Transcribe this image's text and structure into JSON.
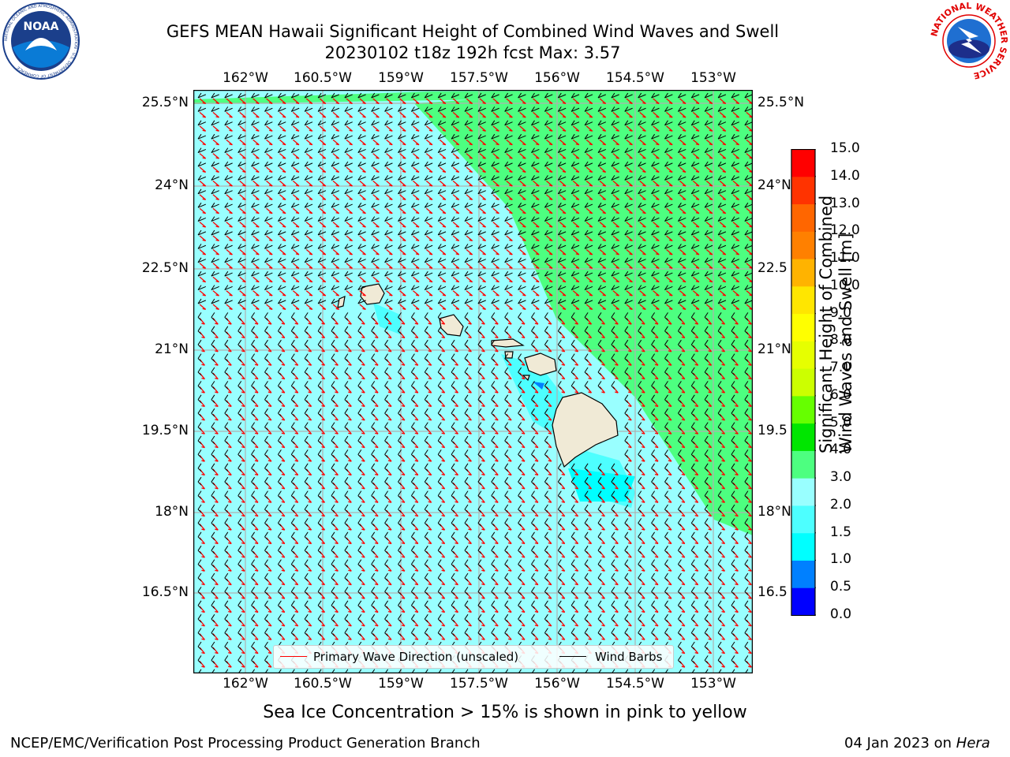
{
  "header": {
    "title_line1": "GEFS MEAN Hawaii Significant Height of Combined Wind Waves and Swell",
    "title_line2": "20230102 t18z 192h fcst   Max: 3.57"
  },
  "logos": {
    "noaa_text": "NOAA",
    "noaa_ring_text": "NATIONAL OCEANIC AND ATMOSPHERIC ADMINISTRATION · U.S. DEPARTMENT OF COMMERCE",
    "nws_ring_text": "NATIONAL WEATHER SERVICE"
  },
  "map": {
    "lon_labels": [
      "162°W",
      "160.5°W",
      "159°W",
      "157.5°W",
      "156°W",
      "154.5°W",
      "153°W"
    ],
    "lat_labels": [
      "25.5°N",
      "24°N",
      "22.5°N",
      "21°N",
      "19.5°N",
      "18°N",
      "16.5°N"
    ],
    "right_lat_labels": [
      "25.5°N",
      "24°N",
      "22.5",
      "21°N",
      "19.5",
      "18°N",
      "16.5"
    ],
    "lon_range": [
      -163.0,
      -152.7
    ],
    "lat_range": [
      15.0,
      25.7
    ],
    "colors": {
      "light_cyan": "#99ffff",
      "cyan_mid": "#4dffff",
      "green": "#4dff80",
      "land": "#f0ead6"
    }
  },
  "legend": {
    "wave_direction": "Primary Wave Direction (unscaled)",
    "wind_barbs": "Wind Barbs",
    "wave_color": "#ff0000",
    "barb_color": "#000000"
  },
  "colorbar": {
    "title_line1": "Significant Height of Combined",
    "title_line2": "Wind Waves and Swell [m]",
    "ticks": [
      "15.0",
      "14.0",
      "13.0",
      "12.0",
      "11.0",
      "10.0",
      "9.0",
      "8.0",
      "7.0",
      "6.0",
      "5.0",
      "4.0",
      "3.0",
      "2.0",
      "1.5",
      "1.0",
      "0.5",
      "0.0"
    ],
    "colors_bottom_to_top": [
      "#0000ff",
      "#0080ff",
      "#00ffff",
      "#4dffff",
      "#99ffff",
      "#4dff80",
      "#00e600",
      "#66ff00",
      "#ccff00",
      "#e6ff00",
      "#ffff00",
      "#ffe600",
      "#ffb300",
      "#ff8000",
      "#ff6600",
      "#ff3300",
      "#ff0000"
    ]
  },
  "footer": {
    "sea_ice_note": "Sea Ice Concentration > 15% is shown in pink to yellow",
    "branch": "NCEP/EMC/Verification Post Processing Product Generation Branch",
    "date": "04 Jan 2023 on",
    "host": "Hera"
  }
}
